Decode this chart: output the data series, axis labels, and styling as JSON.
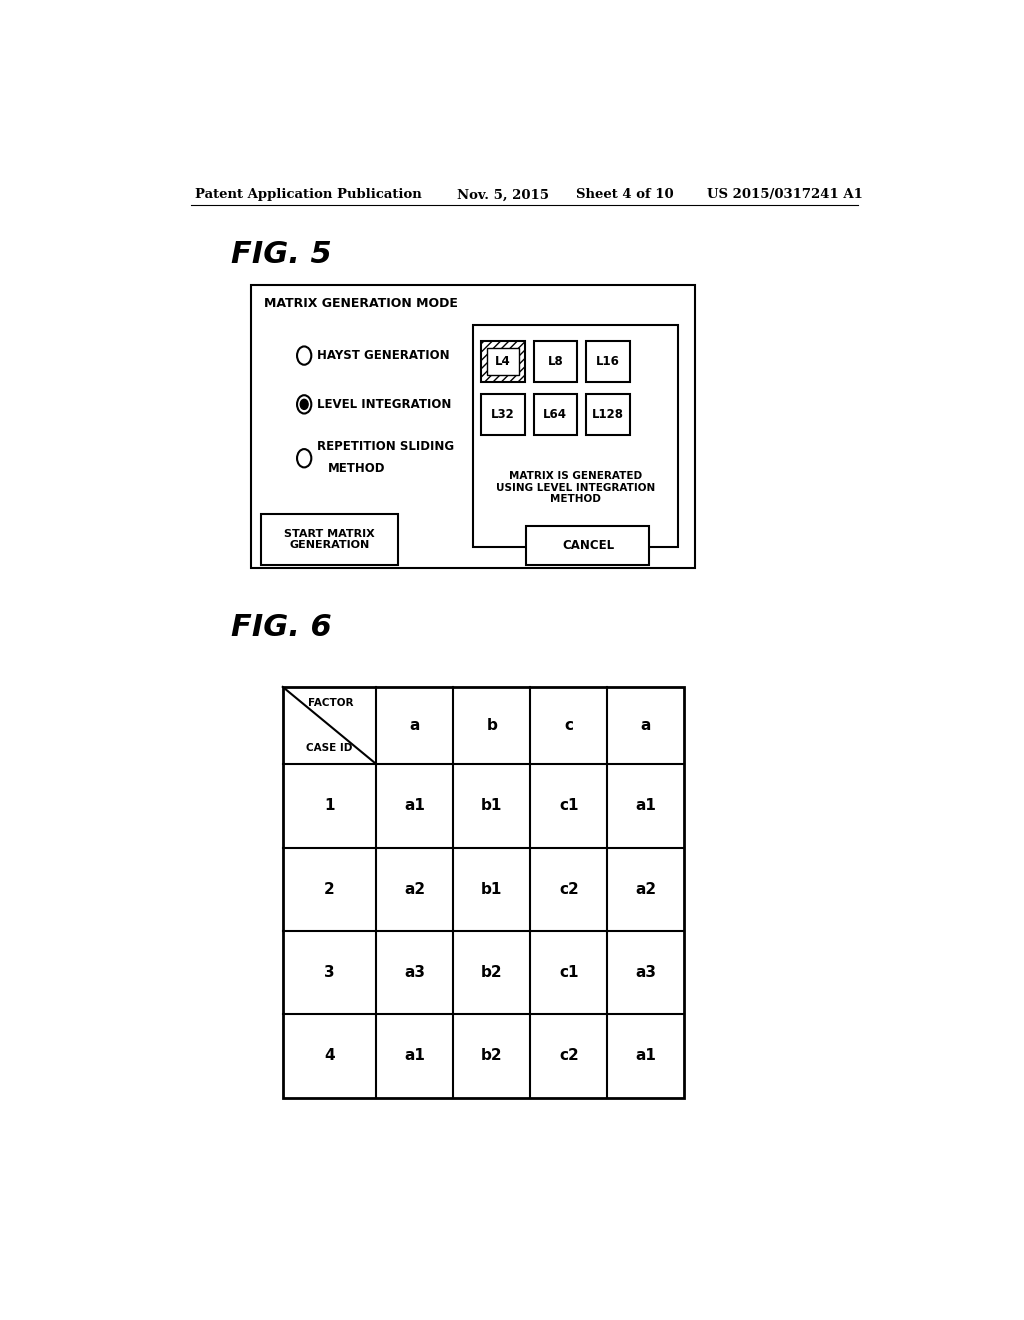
{
  "background_color": "#ffffff",
  "header_text": "Patent Application Publication",
  "header_date": "Nov. 5, 2015",
  "header_sheet": "Sheet 4 of 10",
  "header_patent": "US 2015/0317241 A1",
  "fig5_label": "FIG. 5",
  "fig6_label": "FIG. 6",
  "fig5_title": "MATRIX GENERATION MODE",
  "matrix_info": "MATRIX IS GENERATED\nUSING LEVEL INTEGRATION\nMETHOD",
  "btn_start": "START MATRIX\nGENERATION",
  "btn_cancel": "CANCEL",
  "table_col_labels": [
    "a",
    "b",
    "c",
    "a"
  ],
  "table_row_label_top": "FACTOR",
  "table_row_label_bot": "CASE ID",
  "table_data": [
    [
      "1",
      "a1",
      "b1",
      "c1",
      "a1"
    ],
    [
      "2",
      "a2",
      "b1",
      "c2",
      "a2"
    ],
    [
      "3",
      "a3",
      "b2",
      "c1",
      "a3"
    ],
    [
      "4",
      "a1",
      "b2",
      "c2",
      "a1"
    ]
  ]
}
